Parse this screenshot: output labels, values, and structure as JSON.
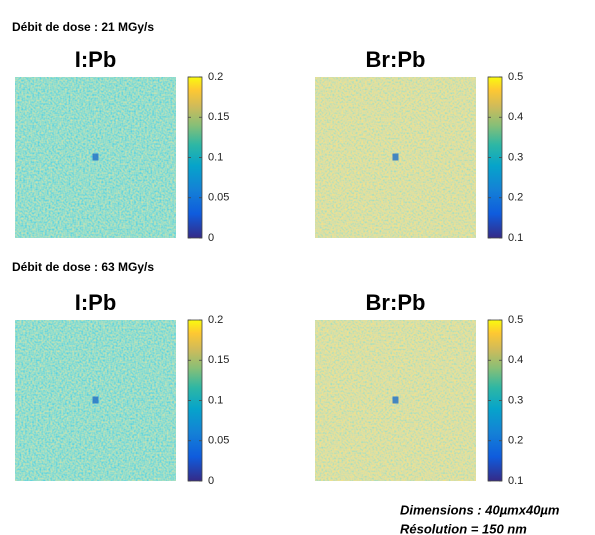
{
  "sections": [
    {
      "heading": "Débit de dose : 21 MGy/s",
      "panels": [
        {
          "title": "I:Pb",
          "colorbar": {
            "lim": [
              0,
              0.2
            ],
            "ticks": [
              0,
              0.05,
              0.1,
              0.15,
              0.2
            ]
          }
        },
        {
          "title": "Br:Pb",
          "colorbar": {
            "lim": [
              0.1,
              0.5
            ],
            "ticks": [
              0.1,
              0.2,
              0.3,
              0.4,
              0.5
            ]
          }
        }
      ]
    },
    {
      "heading": "Débit de dose : 63 MGy/s",
      "panels": [
        {
          "title": "I:Pb",
          "colorbar": {
            "lim": [
              0,
              0.2
            ],
            "ticks": [
              0,
              0.05,
              0.1,
              0.15,
              0.2
            ]
          }
        },
        {
          "title": "Br:Pb",
          "colorbar": {
            "lim": [
              0.1,
              0.5
            ],
            "ticks": [
              0.1,
              0.2,
              0.3,
              0.4,
              0.5
            ]
          }
        }
      ]
    }
  ],
  "footer": [
    "Dimensions : 40µmx40µm",
    "Résolution = 150 nm"
  ]
}
